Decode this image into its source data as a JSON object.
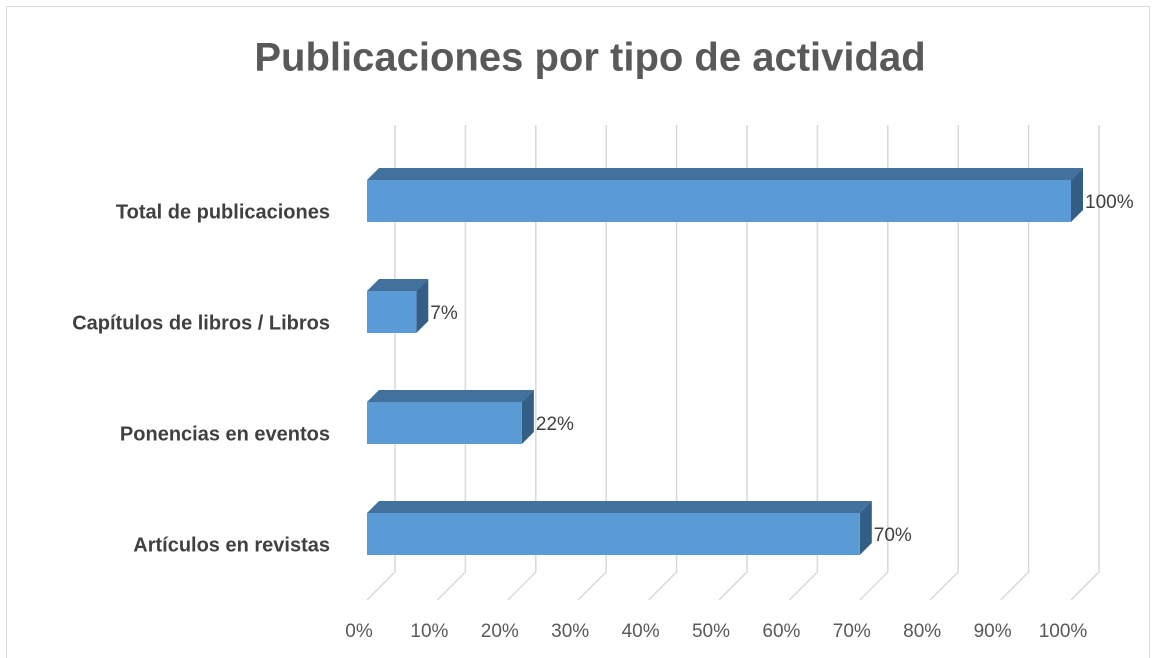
{
  "chart_data": {
    "type": "bar",
    "orientation": "horizontal",
    "title": "Publicaciones por tipo de actividad",
    "categories": [
      "Total de publicaciones",
      "Capítulos de libros / Libros",
      "Ponencias en eventos",
      "Artículos en revistas"
    ],
    "values": [
      100,
      7,
      22,
      70
    ],
    "value_labels": [
      "100%",
      "7%",
      "22%",
      "70%"
    ],
    "color": "#5b9bd5",
    "xlim": [
      0,
      100
    ],
    "xticks": [
      {
        "value": 0,
        "label": "0%"
      },
      {
        "value": 10,
        "label": "10%"
      },
      {
        "value": 20,
        "label": "20%"
      },
      {
        "value": 30,
        "label": "30%"
      },
      {
        "value": 40,
        "label": "40%"
      },
      {
        "value": 50,
        "label": "50%"
      },
      {
        "value": 60,
        "label": "60%"
      },
      {
        "value": 70,
        "label": "70%"
      },
      {
        "value": 80,
        "label": "80%"
      },
      {
        "value": 90,
        "label": "90%"
      },
      {
        "value": 100,
        "label": "100%"
      }
    ],
    "grid": true
  }
}
